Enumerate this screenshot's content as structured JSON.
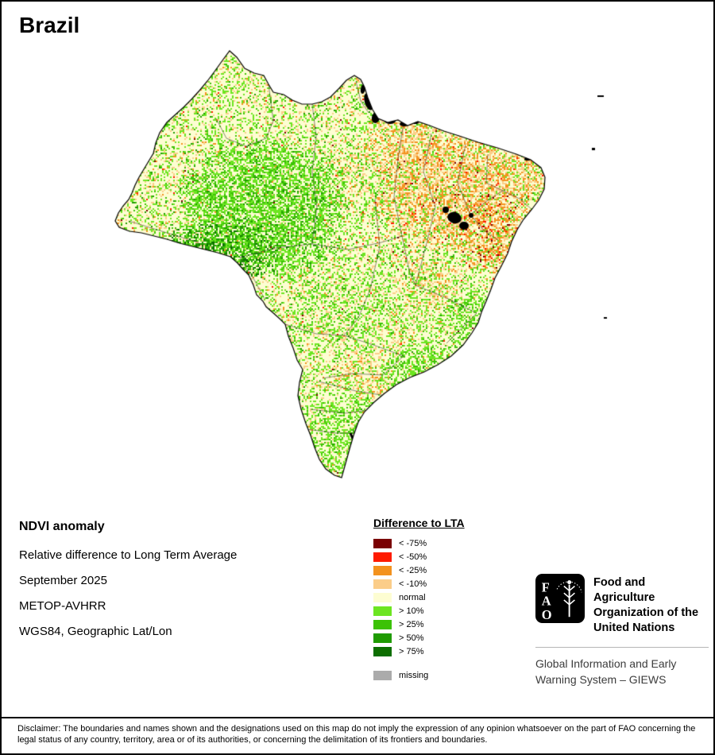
{
  "title": "Brazil",
  "info": {
    "heading": "NDVI anomaly",
    "lines": [
      "Relative difference to Long Term Average",
      "September 2025",
      "METOP-AVHRR",
      "WGS84, Geographic Lat/Lon"
    ]
  },
  "legend": {
    "title": "Difference to LTA",
    "items": [
      {
        "label": "< -75%",
        "color": "#7a0002"
      },
      {
        "label": "< -50%",
        "color": "#fe1b00"
      },
      {
        "label": "< -25%",
        "color": "#f3921e"
      },
      {
        "label": "< -10%",
        "color": "#fbcd89"
      },
      {
        "label": "normal",
        "color": "#fdfdd2"
      },
      {
        "label": "> 10%",
        "color": "#6ce521"
      },
      {
        "label": "> 25%",
        "color": "#3cc206"
      },
      {
        "label": "> 50%",
        "color": "#1f9b02"
      },
      {
        "label": "> 75%",
        "color": "#0d6e00"
      },
      {
        "label": "missing",
        "color": "#ababab",
        "gap": true
      }
    ]
  },
  "org": {
    "logo_letters": [
      "F",
      "A",
      "O"
    ],
    "name_lines": [
      "Food and Agriculture",
      "Organization of the",
      "United Nations"
    ],
    "subtitle_lines": [
      "Global Information and Early",
      "Warning System – GIEWS"
    ]
  },
  "disclaimer": "Disclaimer: The boundaries and names shown and the designations used on this map do not imply the expression of any opinion whatsoever on the part of FAO concerning the legal status of any country, territory, area or of its authorities, or concerning the delimitation of its frontiers and boundaries."
}
